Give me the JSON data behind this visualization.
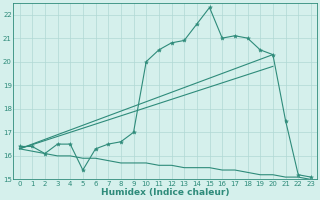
{
  "xlabel": "Humidex (Indice chaleur)",
  "x_values": [
    0,
    1,
    2,
    3,
    4,
    5,
    6,
    7,
    8,
    9,
    10,
    11,
    12,
    13,
    14,
    15,
    16,
    17,
    18,
    19,
    20,
    21,
    22,
    23
  ],
  "line_main_y": [
    16.4,
    16.4,
    16.1,
    16.5,
    16.5,
    15.4,
    16.3,
    16.5,
    16.6,
    17.0,
    20.0,
    20.5,
    20.8,
    20.9,
    21.6,
    22.3,
    21.0,
    21.1,
    21.0,
    20.5,
    20.3,
    17.5,
    15.2,
    15.1
  ],
  "line_lower_y": [
    16.3,
    16.2,
    16.1,
    16.0,
    16.0,
    15.9,
    15.9,
    15.8,
    15.7,
    15.7,
    15.7,
    15.6,
    15.6,
    15.5,
    15.5,
    15.5,
    15.4,
    15.4,
    15.3,
    15.2,
    15.2,
    15.1,
    15.1,
    15.0
  ],
  "trend1_x": [
    0,
    20
  ],
  "trend1_y": [
    16.3,
    20.3
  ],
  "trend2_x": [
    0,
    20
  ],
  "trend2_y": [
    16.3,
    19.8
  ],
  "color": "#2e8b7a",
  "bg_color": "#d5f0ec",
  "grid_color": "#b0d9d4",
  "ylim": [
    15,
    22.5
  ],
  "xlim": [
    -0.5,
    23.5
  ],
  "yticks": [
    15,
    16,
    17,
    18,
    19,
    20,
    21,
    22
  ],
  "xticks": [
    0,
    1,
    2,
    3,
    4,
    5,
    6,
    7,
    8,
    9,
    10,
    11,
    12,
    13,
    14,
    15,
    16,
    17,
    18,
    19,
    20,
    21,
    22,
    23
  ],
  "tick_fontsize": 5.0,
  "xlabel_fontsize": 6.5
}
